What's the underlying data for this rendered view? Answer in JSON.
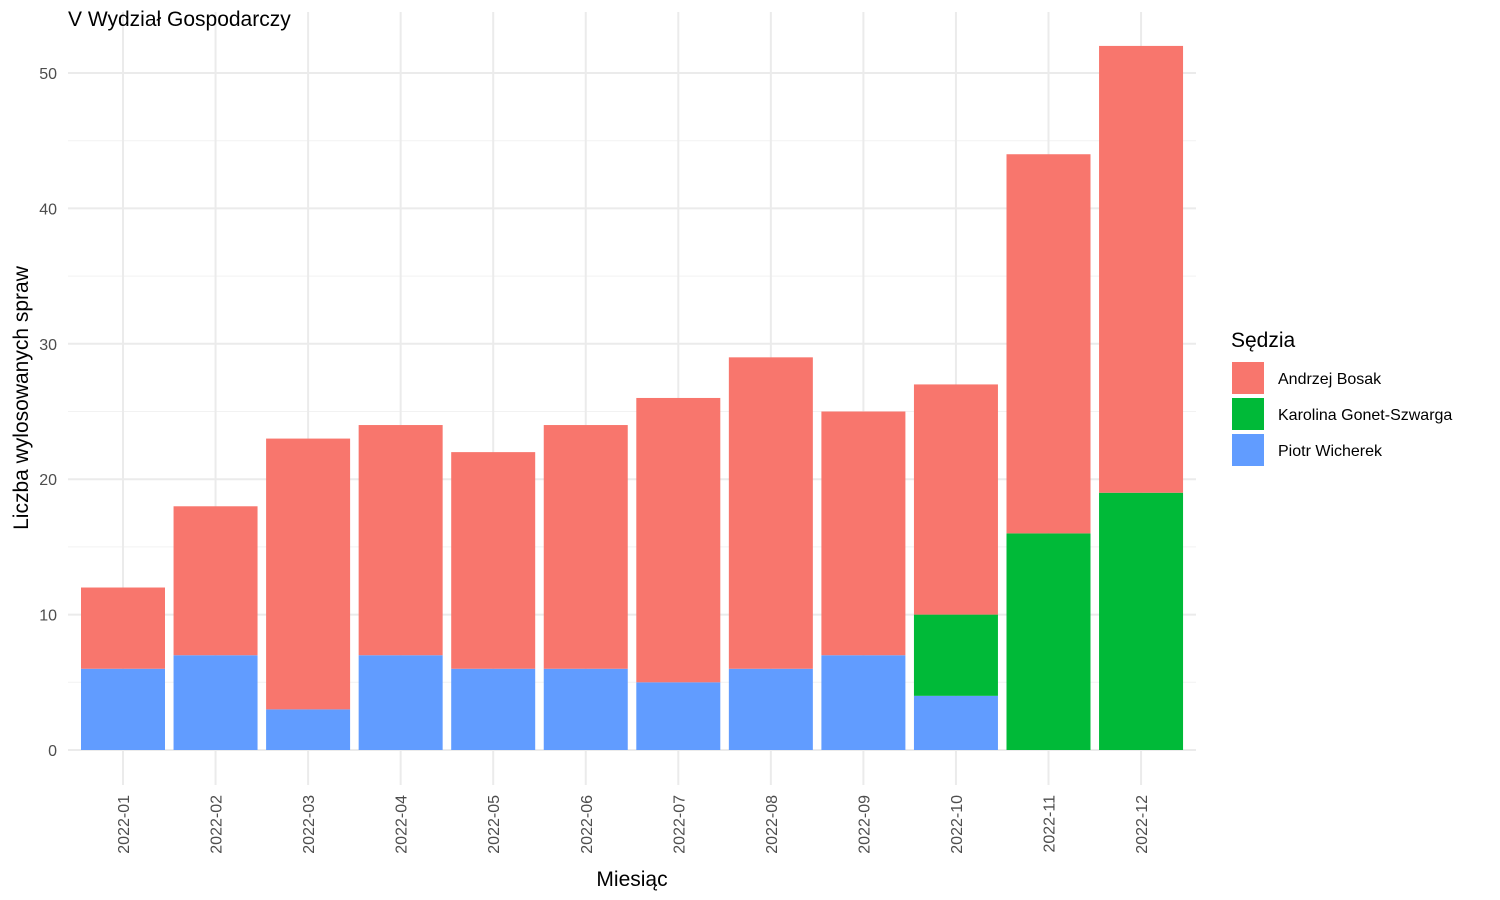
{
  "chart_data": {
    "type": "bar",
    "stacked": true,
    "title": "V Wydział Gospodarczy",
    "xlabel": "Miesiąc",
    "ylabel": "Liczba wylosowanych spraw",
    "ylim": [
      0,
      53
    ],
    "yticks": [
      0,
      10,
      20,
      30,
      40,
      50
    ],
    "grid": true,
    "legend_title": "Sędzia",
    "legend_position": "right",
    "categories": [
      "2022-01",
      "2022-02",
      "2022-03",
      "2022-04",
      "2022-05",
      "2022-06",
      "2022-07",
      "2022-08",
      "2022-09",
      "2022-10",
      "2022-11",
      "2022-12"
    ],
    "series": [
      {
        "name": "Andrzej Bosak",
        "color": "#F8766D",
        "values": [
          6,
          11,
          20,
          17,
          16,
          18,
          21,
          23,
          18,
          17,
          28,
          33
        ]
      },
      {
        "name": "Karolina Gonet-Szwarga",
        "color": "#00BA38",
        "values": [
          0,
          0,
          0,
          0,
          0,
          0,
          0,
          0,
          0,
          6,
          16,
          19
        ]
      },
      {
        "name": "Piotr Wicherek",
        "color": "#619CFF",
        "values": [
          6,
          7,
          3,
          7,
          6,
          6,
          5,
          6,
          7,
          4,
          0,
          0
        ]
      }
    ],
    "stack_order_bottom_to_top": [
      "Piotr Wicherek",
      "Karolina Gonet-Szwarga",
      "Andrzej Bosak"
    ]
  }
}
